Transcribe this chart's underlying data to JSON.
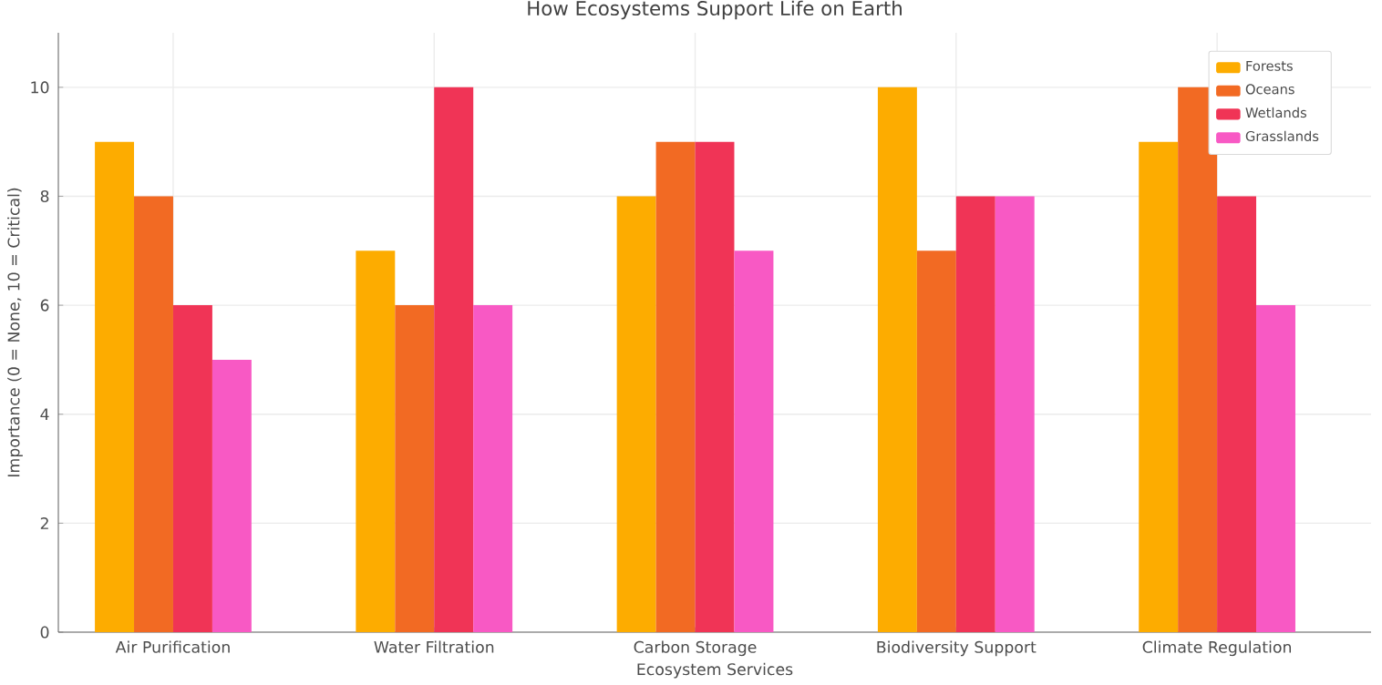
{
  "chart_data": {
    "type": "bar",
    "title": "How Ecosystems Support Life on Earth",
    "xlabel": "Ecosystem Services",
    "ylabel": "Importance (0 = None, 10 = Critical)",
    "categories": [
      "Air Purification",
      "Water Filtration",
      "Carbon Storage",
      "Biodiversity Support",
      "Climate Regulation"
    ],
    "series": [
      {
        "name": "Forests",
        "color": "#fdac00",
        "values": [
          9,
          7,
          8,
          10,
          9
        ]
      },
      {
        "name": "Oceans",
        "color": "#f26a23",
        "values": [
          8,
          6,
          9,
          7,
          10
        ]
      },
      {
        "name": "Wetlands",
        "color": "#f03456",
        "values": [
          6,
          10,
          9,
          8,
          8
        ]
      },
      {
        "name": "Grasslands",
        "color": "#f859c4",
        "values": [
          5,
          6,
          7,
          8,
          6
        ]
      }
    ],
    "ylim": [
      0,
      11
    ],
    "yticks": [
      0,
      2,
      4,
      6,
      8,
      10
    ],
    "grid": true,
    "legend": "top right"
  }
}
